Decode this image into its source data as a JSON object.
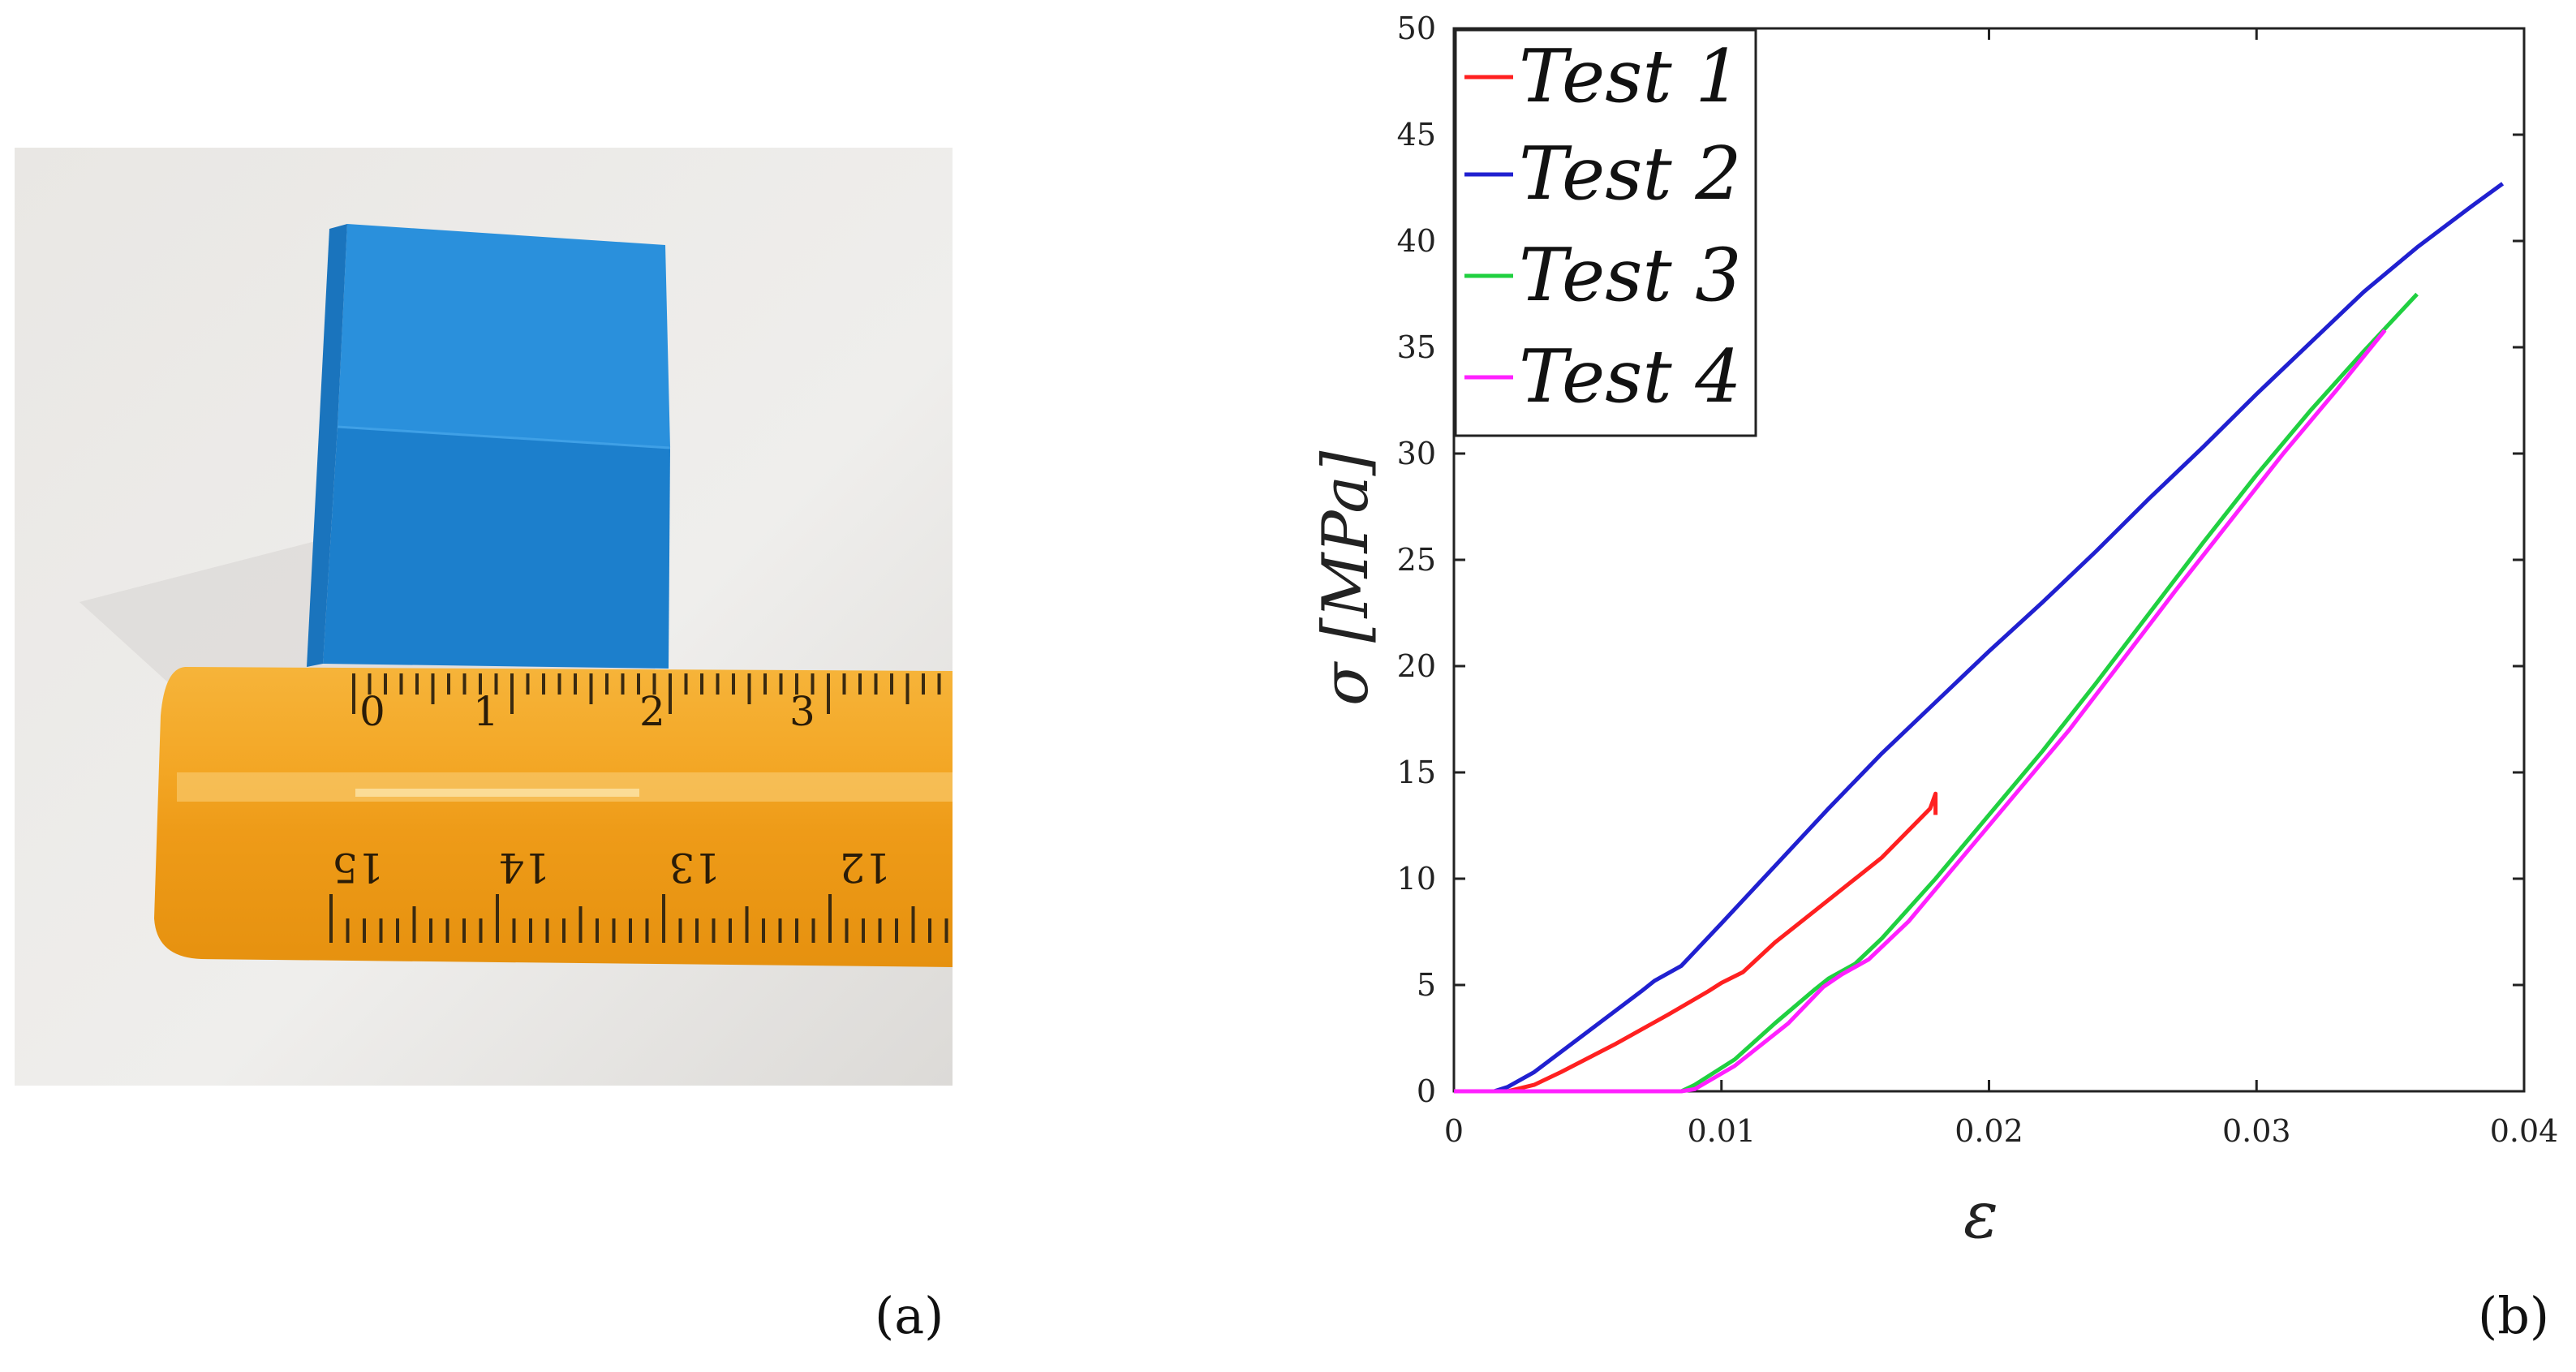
{
  "panels": {
    "a": "(a)",
    "b": "(b)"
  },
  "photo": {
    "subject": "blue printed cube on orange ruler",
    "ruler_top_numbers": [
      "0",
      "1",
      "2",
      "3"
    ],
    "ruler_bottom_numbers": [
      "15",
      "14",
      "13",
      "12"
    ],
    "colors": {
      "cube": "#1e88d6",
      "ruler": "#f0a11f",
      "background": "#ecebe9"
    }
  },
  "chart_data": {
    "type": "line",
    "title": "",
    "xlabel": "ε",
    "ylabel": "σ [MPa]",
    "xlim": [
      0,
      0.04
    ],
    "ylim": [
      0,
      50
    ],
    "xticks": [
      0,
      0.01,
      0.02,
      0.03,
      0.04
    ],
    "xtick_labels": [
      "0",
      "0.01",
      "0.02",
      "0.03",
      "0.04"
    ],
    "yticks": [
      0,
      5,
      10,
      15,
      20,
      25,
      30,
      35,
      40,
      45,
      50
    ],
    "ytick_labels": [
      "0",
      "5",
      "10",
      "15",
      "20",
      "25",
      "30",
      "35",
      "40",
      "45",
      "50"
    ],
    "legend_position": "top-left",
    "series": [
      {
        "name": "Test 1",
        "label": "Test 1",
        "color": "#ff2020",
        "x": [
          0,
          0.002,
          0.003,
          0.004,
          0.006,
          0.008,
          0.0095,
          0.01,
          0.0108,
          0.012,
          0.014,
          0.016,
          0.0178,
          0.018,
          0.018
        ],
        "y": [
          0,
          0,
          0.3,
          0.9,
          2.2,
          3.6,
          4.7,
          5.1,
          5.6,
          7.0,
          9.0,
          11.0,
          13.3,
          14.0,
          13.0
        ]
      },
      {
        "name": "Test 2",
        "label": "Test 2",
        "color": "#2020d0",
        "x": [
          0,
          0.0015,
          0.002,
          0.003,
          0.005,
          0.007,
          0.0075,
          0.0085,
          0.01,
          0.012,
          0.014,
          0.016,
          0.018,
          0.02,
          0.022,
          0.024,
          0.026,
          0.028,
          0.03,
          0.032,
          0.034,
          0.036,
          0.038,
          0.0392
        ],
        "y": [
          0,
          0,
          0.2,
          0.9,
          2.8,
          4.7,
          5.2,
          5.9,
          7.9,
          10.6,
          13.3,
          15.9,
          18.3,
          20.7,
          23.0,
          25.4,
          27.9,
          30.3,
          32.8,
          35.2,
          37.6,
          39.7,
          41.6,
          42.7
        ]
      },
      {
        "name": "Test 3",
        "label": "Test 3",
        "color": "#20d040",
        "x": [
          0,
          0.0085,
          0.009,
          0.0105,
          0.012,
          0.0135,
          0.014,
          0.015,
          0.016,
          0.018,
          0.02,
          0.022,
          0.024,
          0.026,
          0.028,
          0.03,
          0.032,
          0.034,
          0.036
        ],
        "y": [
          0,
          0,
          0.3,
          1.5,
          3.2,
          4.8,
          5.3,
          6.0,
          7.2,
          10.0,
          13.0,
          16.0,
          19.2,
          22.5,
          25.8,
          29.0,
          32.0,
          34.8,
          37.5
        ]
      },
      {
        "name": "Test 4",
        "label": "Test 4",
        "color": "#ff20ff",
        "x": [
          0,
          0.0085,
          0.009,
          0.0105,
          0.0125,
          0.0138,
          0.0145,
          0.0155,
          0.017,
          0.019,
          0.021,
          0.023,
          0.025,
          0.027,
          0.029,
          0.031,
          0.033,
          0.0348
        ],
        "y": [
          0,
          0,
          0.1,
          1.2,
          3.2,
          4.9,
          5.5,
          6.2,
          8.0,
          11.0,
          14.0,
          17.0,
          20.3,
          23.6,
          26.8,
          30.0,
          33.0,
          35.8
        ]
      }
    ]
  }
}
